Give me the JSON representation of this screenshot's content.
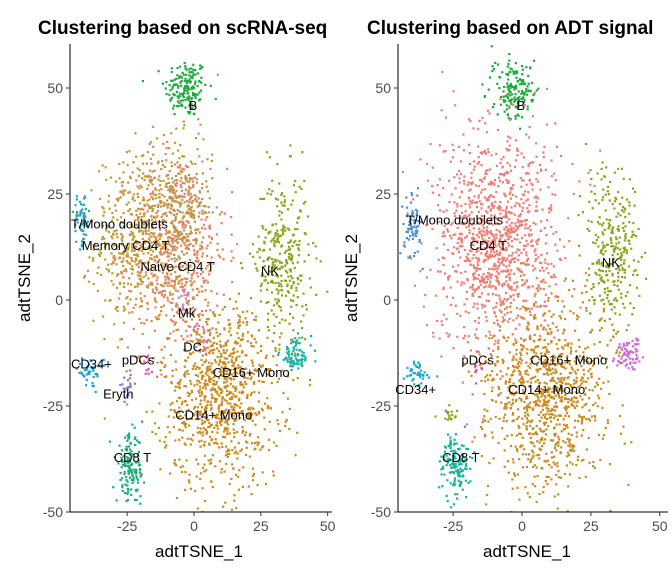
{
  "chart_data": [
    {
      "type": "scatter",
      "title": "Clustering based on scRNA-seq",
      "xlabel": "adtTSNE_1",
      "ylabel": "adtTSNE_2",
      "xlim": [
        -50,
        52
      ],
      "ylim": [
        -50,
        60
      ],
      "xticks": [
        "-25",
        "0",
        "25",
        "50"
      ],
      "yticks": [
        "-50",
        "-25",
        "0",
        "25",
        "50"
      ],
      "grid": false,
      "legend": "none",
      "clusters": [
        {
          "label": "B",
          "color": "#1aab3c",
          "cx": -3,
          "cy": 50,
          "sx": 4,
          "sy": 3.5,
          "n": 160,
          "show_label": true,
          "lx": -2,
          "ly": 46
        },
        {
          "label": "Memory CD4 T",
          "color": "#c59a2c",
          "cx": -21,
          "cy": 14,
          "sx": 8,
          "sy": 10,
          "n": 480,
          "show_label": true,
          "lx": -42,
          "ly": 13
        },
        {
          "label": "Naive CD4 T",
          "color": "#e28361",
          "cx": -6,
          "cy": 12,
          "sx": 9,
          "sy": 12,
          "n": 520,
          "show_label": true,
          "lx": -20,
          "ly": 8
        },
        {
          "label": "Naive CD4 T",
          "color": "#b89a3e",
          "cx": -5,
          "cy": 22,
          "sx": 6,
          "sy": 8,
          "n": 220,
          "show_label": false,
          "lx": 0,
          "ly": 0
        },
        {
          "label": "T/Mono doublets",
          "color": "#26a6c0",
          "cx": -42,
          "cy": 19,
          "sx": 1.5,
          "sy": 3,
          "n": 60,
          "show_label": true,
          "lx": -46,
          "ly": 18
        },
        {
          "label": "NK",
          "color": "#8ca416",
          "cx": 33,
          "cy": 10,
          "sx": 5,
          "sy": 10,
          "n": 300,
          "show_label": true,
          "lx": 25,
          "ly": 7
        },
        {
          "label": "Mk",
          "color": "#b38ee8",
          "cx": -3,
          "cy": -1,
          "sx": 2,
          "sy": 2,
          "n": 15,
          "show_label": true,
          "lx": -6,
          "ly": -3
        },
        {
          "label": "DC",
          "color": "#d773ae",
          "cx": 3,
          "cy": -9,
          "sx": 2,
          "sy": 2,
          "n": 20,
          "show_label": true,
          "lx": -4,
          "ly": -11
        },
        {
          "label": "CD14+ Mono",
          "color": "#cc8b1a",
          "cx": 10,
          "cy": -22,
          "sx": 11,
          "sy": 11,
          "n": 900,
          "show_label": true,
          "lx": -7,
          "ly": -27
        },
        {
          "label": "CD16+ Mono",
          "color": "#16b5a8",
          "cx": 38,
          "cy": -13,
          "sx": 3,
          "sy": 2,
          "n": 80,
          "show_label": true,
          "lx": 7,
          "ly": -17
        },
        {
          "label": "pDCs",
          "color": "#e44da6",
          "cx": -17,
          "cy": -15,
          "sx": 1,
          "sy": 1.5,
          "n": 12,
          "show_label": true,
          "lx": -27,
          "ly": -14
        },
        {
          "label": "CD34+",
          "color": "#0fa5d2",
          "cx": -39,
          "cy": -17,
          "sx": 2.5,
          "sy": 1.5,
          "n": 40,
          "show_label": true,
          "lx": -46,
          "ly": -15
        },
        {
          "label": "Eryth",
          "color": "#8a78e0",
          "cx": -25,
          "cy": -20,
          "sx": 1.2,
          "sy": 1.5,
          "n": 20,
          "show_label": true,
          "lx": -34,
          "ly": -22
        },
        {
          "label": "CD8 T",
          "color": "#1bad7f",
          "cx": -24,
          "cy": -40,
          "sx": 2.5,
          "sy": 4,
          "n": 140,
          "show_label": true,
          "lx": -30,
          "ly": -37
        }
      ]
    },
    {
      "type": "scatter",
      "title": "Clustering based on ADT signal",
      "xlabel": "adtTSNE_1",
      "ylabel": "adtTSNE_2",
      "xlim": [
        -50,
        52
      ],
      "ylim": [
        -50,
        60
      ],
      "xticks": [
        "-25",
        "0",
        "25",
        "50"
      ],
      "yticks": [
        "-50",
        "-25",
        "0",
        "25",
        "50"
      ],
      "grid": false,
      "legend": "none",
      "clusters": [
        {
          "label": "B",
          "color": "#1aab3c",
          "cx": -3,
          "cy": 50,
          "sx": 4,
          "sy": 3.5,
          "n": 160,
          "show_label": true,
          "lx": -2,
          "ly": 46
        },
        {
          "label": "CD4 T",
          "color": "#f07c74",
          "cx": -9,
          "cy": 14,
          "sx": 11,
          "sy": 13,
          "n": 1100,
          "show_label": true,
          "lx": -19,
          "ly": 13
        },
        {
          "label": "T/Mono doublets",
          "color": "#4f8fd8",
          "cx": -40,
          "cy": 17,
          "sx": 1.8,
          "sy": 3.5,
          "n": 70,
          "show_label": true,
          "lx": -42,
          "ly": 19
        },
        {
          "label": "NK",
          "color": "#8ca416",
          "cx": 33,
          "cy": 11,
          "sx": 5,
          "sy": 10,
          "n": 300,
          "show_label": true,
          "lx": 29,
          "ly": 9
        },
        {
          "label": "CD16+ Mono",
          "color": "#cf6ae0",
          "cx": 38,
          "cy": -13,
          "sx": 2.5,
          "sy": 2,
          "n": 70,
          "show_label": true,
          "lx": 3,
          "ly": -14
        },
        {
          "label": "CD14+ Mono",
          "color": "#cc8b1a",
          "cx": 8,
          "cy": -23,
          "sx": 11,
          "sy": 11,
          "n": 900,
          "show_label": true,
          "lx": -5,
          "ly": -21
        },
        {
          "label": "pDCs",
          "color": "#e44da6",
          "cx": -16,
          "cy": -16,
          "sx": 1,
          "sy": 1.5,
          "n": 10,
          "show_label": true,
          "lx": -22,
          "ly": -14
        },
        {
          "label": "CD34+",
          "color": "#16abd0",
          "cx": -38,
          "cy": -17,
          "sx": 2.5,
          "sy": 1.5,
          "n": 40,
          "show_label": true,
          "lx": -46,
          "ly": -21
        },
        {
          "label": "",
          "color": "#8ca416",
          "cx": -26,
          "cy": -27,
          "sx": 1,
          "sy": 1.2,
          "n": 15,
          "show_label": false,
          "lx": 0,
          "ly": 0
        },
        {
          "label": "CD8 T",
          "color": "#14b59c",
          "cx": -24,
          "cy": -39,
          "sx": 2.5,
          "sy": 4,
          "n": 140,
          "show_label": true,
          "lx": -29,
          "ly": -37
        }
      ]
    }
  ]
}
